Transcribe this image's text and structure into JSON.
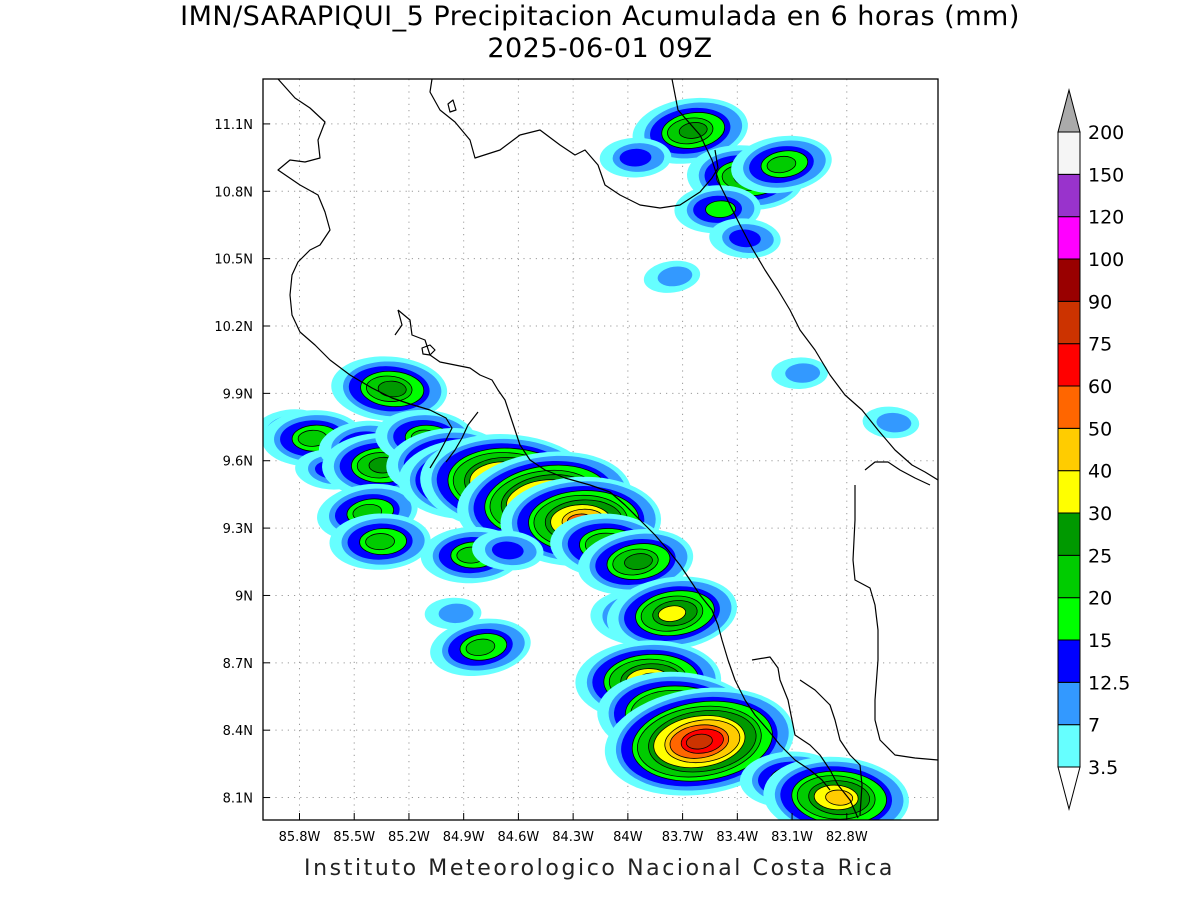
{
  "title": "IMN/SARAPIQUI_5 Precipitacion Acumulada en 6 horas (mm)",
  "subtitle": "2025-06-01 09Z",
  "footer": "Instituto Meteorologico Nacional Costa Rica",
  "chart_data": {
    "type": "heatmap",
    "variable": "6-hour accumulated precipitation (mm)",
    "lon_ticks": [
      "85.8W",
      "85.5W",
      "85.2W",
      "84.9W",
      "84.6W",
      "84.3W",
      "84W",
      "83.7W",
      "83.4W",
      "83.1W",
      "82.8W"
    ],
    "lat_ticks": [
      "11.1N",
      "10.8N",
      "10.5N",
      "10.2N",
      "9.9N",
      "9.6N",
      "9.3N",
      "9N",
      "8.7N",
      "8.4N",
      "8.1N"
    ],
    "lon_range": [
      -86.0,
      -82.3
    ],
    "lat_range": [
      8.0,
      11.3
    ],
    "grid": true,
    "legend_position": "right",
    "colorbar": {
      "labels": [
        "3.5",
        "7",
        "12.5",
        "15",
        "20",
        "25",
        "30",
        "40",
        "50",
        "60",
        "75",
        "90",
        "100",
        "120",
        "150",
        "200"
      ],
      "colors": [
        "#66ffff",
        "#3399ff",
        "#0000ff",
        "#00ff00",
        "#00cc00",
        "#009900",
        "#ffff00",
        "#ffcc00",
        "#ff6600",
        "#ff0000",
        "#cc3300",
        "#990000",
        "#ff00ff",
        "#9933cc",
        "#f5f5f5"
      ],
      "over_color": "#aaaaaa",
      "under_color": "#ffffff"
    },
    "cells": [
      {
        "lon": -85.85,
        "lat": 9.74,
        "max": 12.5
      },
      {
        "lon": -85.72,
        "lat": 9.7,
        "max": 20
      },
      {
        "lon": -85.62,
        "lat": 9.56,
        "max": 12.5
      },
      {
        "lon": -85.45,
        "lat": 9.67,
        "max": 15
      },
      {
        "lon": -85.35,
        "lat": 9.58,
        "max": 25
      },
      {
        "lon": -85.3,
        "lat": 9.92,
        "max": 25
      },
      {
        "lon": -85.42,
        "lat": 9.37,
        "max": 20
      },
      {
        "lon": -85.35,
        "lat": 9.24,
        "max": 20
      },
      {
        "lon": -85.1,
        "lat": 9.7,
        "max": 20
      },
      {
        "lon": -85.0,
        "lat": 9.6,
        "max": 25
      },
      {
        "lon": -84.85,
        "lat": 9.52,
        "max": 40
      },
      {
        "lon": -84.65,
        "lat": 9.5,
        "max": 60
      },
      {
        "lon": -84.45,
        "lat": 9.42,
        "max": 60
      },
      {
        "lon": -84.25,
        "lat": 9.33,
        "max": 50
      },
      {
        "lon": -84.1,
        "lat": 9.22,
        "max": 25
      },
      {
        "lon": -83.95,
        "lat": 9.15,
        "max": 25
      },
      {
        "lon": -84.85,
        "lat": 9.18,
        "max": 20
      },
      {
        "lon": -84.65,
        "lat": 9.2,
        "max": 12.5
      },
      {
        "lon": -84.8,
        "lat": 8.77,
        "max": 20
      },
      {
        "lon": -84.95,
        "lat": 8.92,
        "max": 7
      },
      {
        "lon": -83.92,
        "lat": 8.9,
        "max": 20
      },
      {
        "lon": -83.75,
        "lat": 8.92,
        "max": 30
      },
      {
        "lon": -83.88,
        "lat": 8.62,
        "max": 40
      },
      {
        "lon": -83.72,
        "lat": 8.46,
        "max": 50
      },
      {
        "lon": -83.6,
        "lat": 8.35,
        "max": 75
      },
      {
        "lon": -83.1,
        "lat": 8.18,
        "max": 20
      },
      {
        "lon": -82.85,
        "lat": 8.1,
        "max": 40
      },
      {
        "lon": -83.65,
        "lat": 11.07,
        "max": 25
      },
      {
        "lon": -83.95,
        "lat": 10.95,
        "max": 12.5
      },
      {
        "lon": -83.35,
        "lat": 10.86,
        "max": 25
      },
      {
        "lon": -83.15,
        "lat": 10.92,
        "max": 20
      },
      {
        "lon": -83.5,
        "lat": 10.72,
        "max": 15
      },
      {
        "lon": -83.35,
        "lat": 10.59,
        "max": 12.5
      },
      {
        "lon": -83.75,
        "lat": 10.42,
        "max": 7
      },
      {
        "lon": -83.05,
        "lat": 9.99,
        "max": 7
      },
      {
        "lon": -82.55,
        "lat": 9.77,
        "max": 7
      }
    ]
  }
}
